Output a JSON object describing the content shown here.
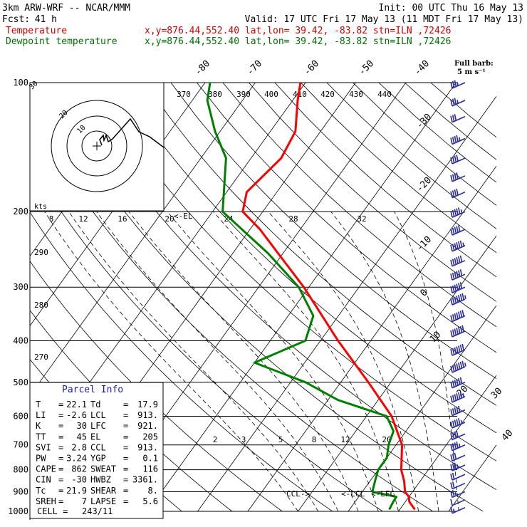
{
  "header": {
    "model": "3km ARW-WRF -- NCAR/MMM",
    "init": "Init: 00 UTC Thu 16 May 13",
    "fcst_label": "Fcst:",
    "fcst_value": "41 h",
    "valid": "Valid: 17 UTC Fri 17 May 13 (11 MDT Fri 17 May 13)",
    "temp_label": "Temperature",
    "dew_label": "Dewpoint temperature",
    "location": "x,y=876.44,552.40   lat,lon= 39.42, -83.82  stn=ILN ,72426"
  },
  "barb_legend": {
    "title": "Full barb:",
    "value": "5 m s⁻¹"
  },
  "hodograph": {
    "unit": "kts",
    "ring_labels": [
      "30",
      "20",
      "10"
    ]
  },
  "parcel_info": {
    "title": "Parcel Info",
    "rows": [
      [
        "T",
        "22.1",
        "Td",
        "17.9"
      ],
      [
        "LI",
        "-2.6",
        "LCL",
        "913."
      ],
      [
        "K",
        "30",
        "LFC",
        "921."
      ],
      [
        "TT",
        "45",
        "EL",
        "205"
      ],
      [
        "SVI",
        "2.8",
        "CCL",
        "913."
      ],
      [
        "PW",
        "3.24",
        "YGP",
        "0.1"
      ],
      [
        "CAPE",
        "862",
        "SWEAT",
        "116"
      ],
      [
        "CIN",
        "-30",
        "HWBZ",
        "3361."
      ],
      [
        "Tc",
        "21.9",
        "SHEAR",
        "8."
      ],
      [
        "SREH",
        "7",
        "LAPSE",
        "5.6"
      ]
    ],
    "cell_label": "CELL =",
    "cell_value": "243/11"
  },
  "markers": {
    "el": "<-EL",
    "ccl": "CCL->",
    "lcl": "<-LCL",
    "lfc": "<-LFC"
  },
  "colors": {
    "temperature": "#ff0000",
    "dewpoint": "#008000",
    "barbs": "#2a2aa0",
    "info_box": "#1a1aa8"
  },
  "chart_data": {
    "type": "line",
    "title": "",
    "ylabel": "",
    "xlabel": "",
    "y_scale": "log-pressure",
    "ylim": [
      1000,
      100
    ],
    "pressure_levels": [
      100,
      200,
      300,
      400,
      500,
      600,
      700,
      800,
      900,
      1000
    ],
    "pressure_tick_labels": [
      "100",
      "200",
      "300",
      "400",
      "500",
      "600",
      "700",
      "800",
      "900",
      "1000"
    ],
    "isotherm_labels": [
      "-80",
      "-70",
      "-60",
      "-50",
      "-40",
      "-30",
      "-20",
      "-10",
      "0",
      "10",
      "20",
      "30",
      "40"
    ],
    "dry_adiabat_labels": [
      "370",
      "380",
      "390",
      "400",
      "410",
      "420",
      "430",
      "440"
    ],
    "low_theta_labels": [
      "290",
      "280",
      "270"
    ],
    "mixing_ratio_labels": [
      "2",
      "3",
      "5",
      "8",
      "12",
      "20"
    ],
    "hodo_speed_labels": [
      "8",
      "12",
      "16",
      "20",
      "24",
      "28",
      "32"
    ],
    "series": [
      {
        "name": "Temperature",
        "color": "#ff0000",
        "points": [
          [
            990,
            23.0
          ],
          [
            950,
            20.8
          ],
          [
            925,
            20.0
          ],
          [
            900,
            18.5
          ],
          [
            850,
            16.8
          ],
          [
            800,
            14.6
          ],
          [
            700,
            11.2
          ],
          [
            600,
            5.0
          ],
          [
            500,
            -4.5
          ],
          [
            400,
            -16.5
          ],
          [
            300,
            -31.0
          ],
          [
            250,
            -41.0
          ],
          [
            220,
            -48.0
          ],
          [
            200,
            -54.0
          ],
          [
            180,
            -56.0
          ],
          [
            150,
            -54.0
          ],
          [
            130,
            -55.0
          ],
          [
            110,
            -59.0
          ],
          [
            100,
            -61.0
          ]
        ]
      },
      {
        "name": "Dewpoint temperature",
        "color": "#008000",
        "points": [
          [
            990,
            17.9
          ],
          [
            950,
            17.6
          ],
          [
            925,
            17.5
          ],
          [
            900,
            12.0
          ],
          [
            850,
            11.0
          ],
          [
            800,
            10.0
          ],
          [
            750,
            10.0
          ],
          [
            700,
            8.5
          ],
          [
            650,
            7.5
          ],
          [
            600,
            4.0
          ],
          [
            550,
            -8.0
          ],
          [
            500,
            -17.0
          ],
          [
            450,
            -30.0
          ],
          [
            400,
            -23.0
          ],
          [
            350,
            -25.0
          ],
          [
            300,
            -32.0
          ],
          [
            250,
            -43.0
          ],
          [
            200,
            -58.0
          ],
          [
            150,
            -65.0
          ],
          [
            130,
            -71.0
          ],
          [
            110,
            -77.0
          ],
          [
            100,
            -79.0
          ]
        ]
      }
    ],
    "wind_profile_ms": [
      [
        980,
        2.5
      ],
      [
        940,
        5
      ],
      [
        900,
        7.5
      ],
      [
        860,
        10
      ],
      [
        820,
        10
      ],
      [
        780,
        12.5
      ],
      [
        740,
        15
      ],
      [
        700,
        17.5
      ],
      [
        660,
        20
      ],
      [
        620,
        22.5
      ],
      [
        580,
        25
      ],
      [
        540,
        27.5
      ],
      [
        500,
        30
      ],
      [
        460,
        32.5
      ],
      [
        420,
        35
      ],
      [
        380,
        35
      ],
      [
        350,
        35
      ],
      [
        320,
        32.5
      ],
      [
        300,
        30
      ],
      [
        280,
        30
      ],
      [
        260,
        30
      ],
      [
        240,
        27.5
      ],
      [
        220,
        25
      ],
      [
        200,
        22.5
      ],
      [
        180,
        20
      ],
      [
        165,
        20
      ],
      [
        150,
        20
      ],
      [
        135,
        17.5
      ],
      [
        120,
        15
      ],
      [
        110,
        12.5
      ],
      [
        100,
        12.5
      ]
    ]
  }
}
